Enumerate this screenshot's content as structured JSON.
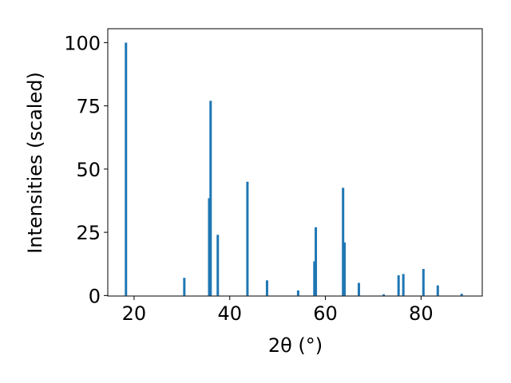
{
  "chart_data": {
    "type": "bar",
    "x_label": "2θ (°)",
    "y_label": "Intensities (scaled)",
    "x": [
      18.3,
      30.5,
      35.7,
      36.0,
      37.5,
      43.7,
      47.8,
      54.3,
      57.7,
      58.0,
      63.7,
      64.0,
      67.0,
      72.2,
      75.3,
      76.3,
      80.5,
      83.5,
      88.5
    ],
    "values": [
      100,
      7,
      38.5,
      77,
      24,
      45,
      6,
      2,
      13.5,
      27,
      42.6,
      21,
      5,
      0.5,
      8,
      8.5,
      10.5,
      4,
      0.7
    ],
    "color": "#1f77b4",
    "xlim": [
      14.5,
      92.8
    ],
    "ylim": [
      -0.2,
      105.5
    ],
    "xticks": [
      20,
      40,
      60,
      80
    ],
    "yticks": [
      0,
      25,
      50,
      75,
      100
    ]
  }
}
